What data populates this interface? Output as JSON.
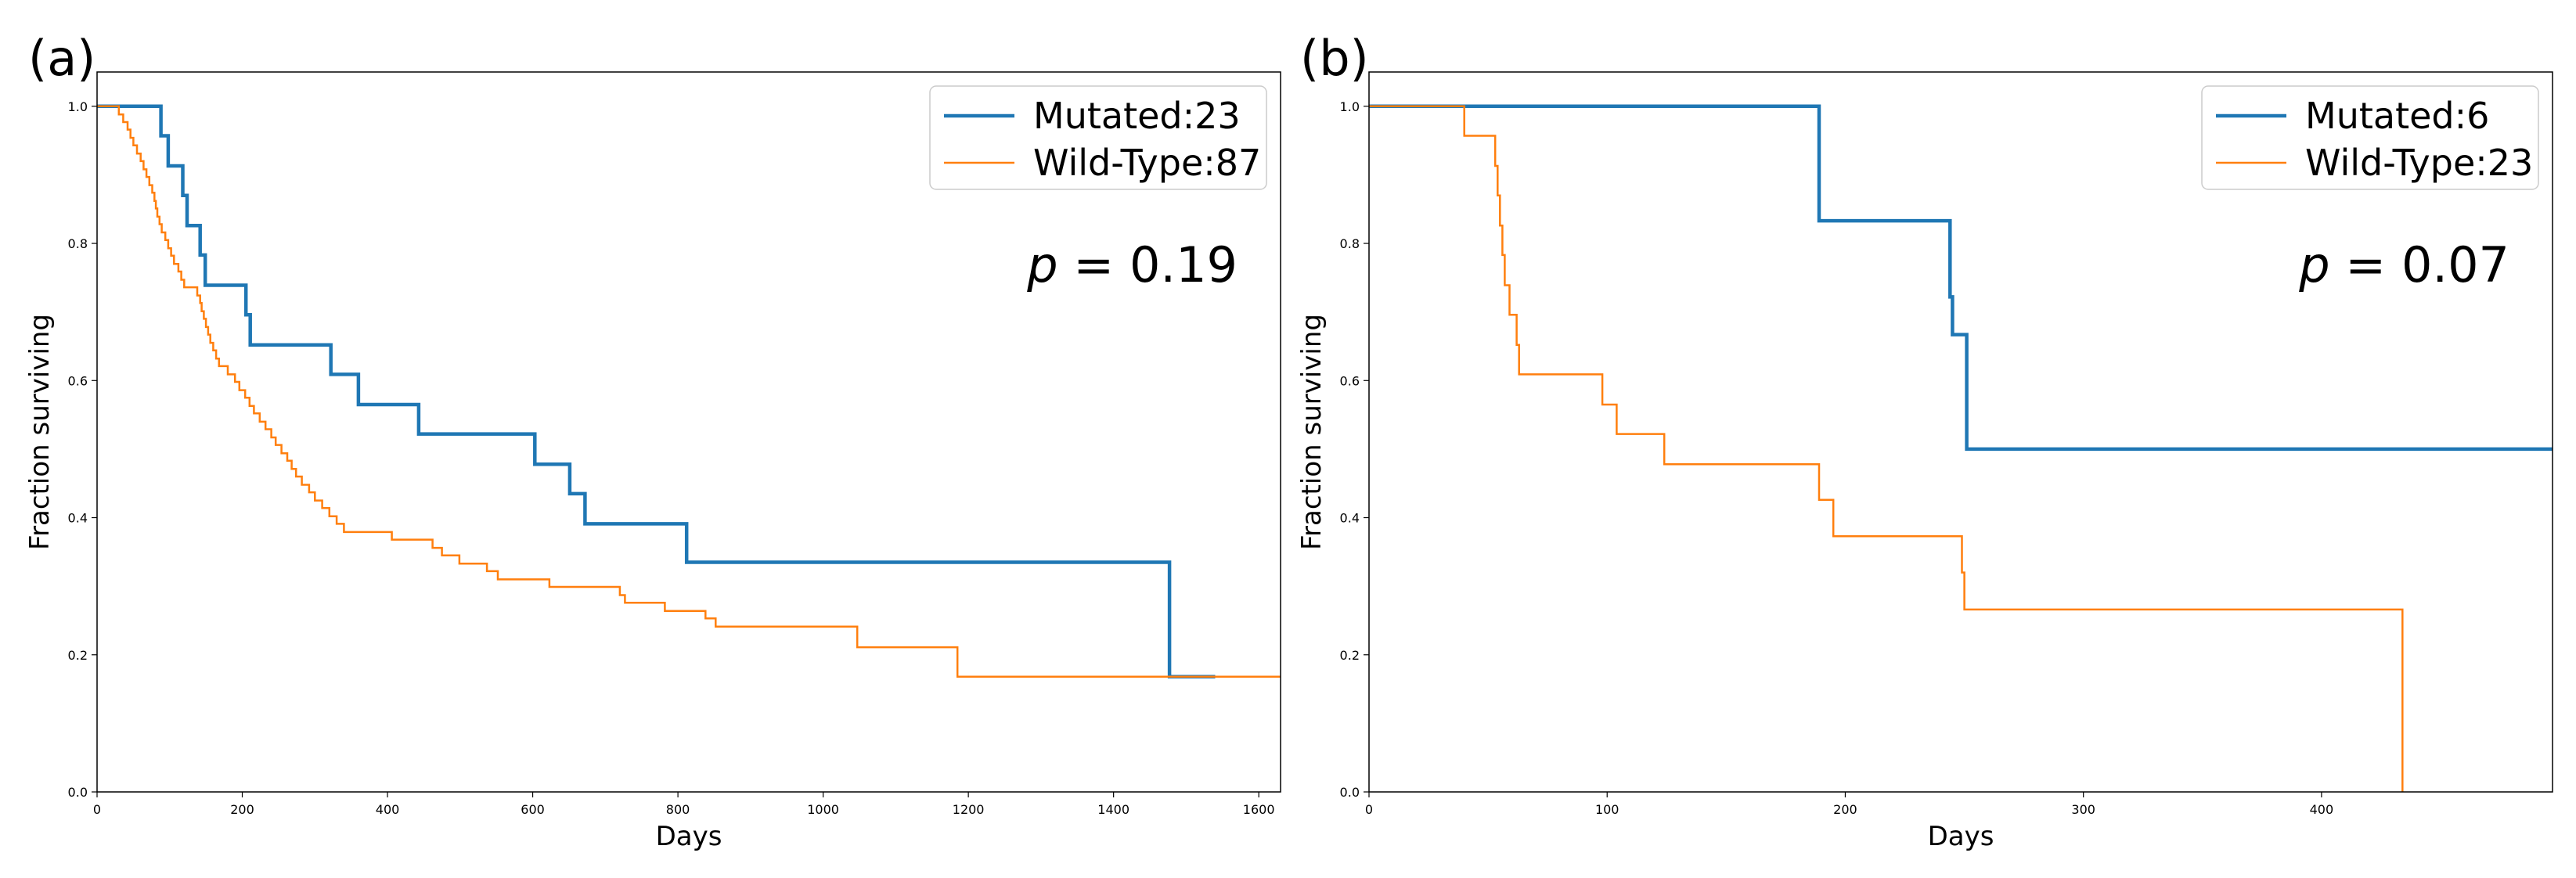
{
  "chart_data": [
    {
      "type": "line",
      "subtype": "kaplan-meier step",
      "panel_label": "(a)",
      "xlabel": "Days",
      "ylabel": "Fraction surviving",
      "xlim": [
        0,
        1630
      ],
      "ylim": [
        0,
        1.05
      ],
      "xticks": [
        0,
        200,
        400,
        600,
        800,
        1000,
        1200,
        1400,
        1600
      ],
      "yticks": [
        0.0,
        0.2,
        0.4,
        0.6,
        0.8,
        1.0
      ],
      "annotation": {
        "italic_symbol": "p",
        "text": " = 0.19"
      },
      "legend_position": "top-right",
      "series": [
        {
          "name": "Mutated:23",
          "color": "#1f77b4",
          "width": 4.5,
          "points": [
            [
              0,
              1.0
            ],
            [
              88,
              1.0
            ],
            [
              88,
              0.957
            ],
            [
              98,
              0.957
            ],
            [
              98,
              0.913
            ],
            [
              118,
              0.913
            ],
            [
              118,
              0.87
            ],
            [
              124,
              0.87
            ],
            [
              124,
              0.826
            ],
            [
              142,
              0.826
            ],
            [
              142,
              0.783
            ],
            [
              149,
              0.783
            ],
            [
              149,
              0.739
            ],
            [
              205,
              0.739
            ],
            [
              205,
              0.696
            ],
            [
              211,
              0.696
            ],
            [
              211,
              0.652
            ],
            [
              322,
              0.652
            ],
            [
              322,
              0.609
            ],
            [
              360,
              0.609
            ],
            [
              360,
              0.565
            ],
            [
              443,
              0.565
            ],
            [
              443,
              0.522
            ],
            [
              603,
              0.522
            ],
            [
              603,
              0.478
            ],
            [
              651,
              0.478
            ],
            [
              651,
              0.435
            ],
            [
              672,
              0.435
            ],
            [
              672,
              0.391
            ],
            [
              812,
              0.391
            ],
            [
              812,
              0.335
            ],
            [
              1477,
              0.335
            ],
            [
              1477,
              0.168
            ],
            [
              1540,
              0.168
            ]
          ]
        },
        {
          "name": "Wild-Type:87",
          "color": "#ff7f0e",
          "width": 2.5,
          "points": [
            [
              0,
              1.0
            ],
            [
              30,
              1.0
            ],
            [
              30,
              0.988
            ],
            [
              36,
              0.988
            ],
            [
              36,
              0.977
            ],
            [
              42,
              0.977
            ],
            [
              42,
              0.966
            ],
            [
              46,
              0.966
            ],
            [
              46,
              0.954
            ],
            [
              50,
              0.954
            ],
            [
              50,
              0.943
            ],
            [
              55,
              0.943
            ],
            [
              55,
              0.931
            ],
            [
              60,
              0.931
            ],
            [
              60,
              0.92
            ],
            [
              64,
              0.92
            ],
            [
              64,
              0.908
            ],
            [
              68,
              0.908
            ],
            [
              68,
              0.897
            ],
            [
              72,
              0.897
            ],
            [
              72,
              0.885
            ],
            [
              76,
              0.885
            ],
            [
              76,
              0.874
            ],
            [
              79,
              0.874
            ],
            [
              79,
              0.862
            ],
            [
              81,
              0.862
            ],
            [
              81,
              0.851
            ],
            [
              83,
              0.851
            ],
            [
              83,
              0.839
            ],
            [
              86,
              0.839
            ],
            [
              86,
              0.828
            ],
            [
              89,
              0.828
            ],
            [
              89,
              0.816
            ],
            [
              94,
              0.816
            ],
            [
              94,
              0.805
            ],
            [
              98,
              0.805
            ],
            [
              98,
              0.793
            ],
            [
              102,
              0.793
            ],
            [
              102,
              0.782
            ],
            [
              106,
              0.782
            ],
            [
              106,
              0.77
            ],
            [
              112,
              0.77
            ],
            [
              112,
              0.759
            ],
            [
              116,
              0.759
            ],
            [
              116,
              0.747
            ],
            [
              120,
              0.747
            ],
            [
              120,
              0.736
            ],
            [
              138,
              0.736
            ],
            [
              138,
              0.724
            ],
            [
              142,
              0.724
            ],
            [
              142,
              0.713
            ],
            [
              144,
              0.713
            ],
            [
              144,
              0.701
            ],
            [
              147,
              0.701
            ],
            [
              147,
              0.69
            ],
            [
              150,
              0.69
            ],
            [
              150,
              0.678
            ],
            [
              153,
              0.678
            ],
            [
              153,
              0.667
            ],
            [
              156,
              0.667
            ],
            [
              156,
              0.655
            ],
            [
              160,
              0.655
            ],
            [
              160,
              0.644
            ],
            [
              164,
              0.644
            ],
            [
              164,
              0.632
            ],
            [
              168,
              0.632
            ],
            [
              168,
              0.621
            ],
            [
              180,
              0.621
            ],
            [
              180,
              0.609
            ],
            [
              190,
              0.609
            ],
            [
              190,
              0.598
            ],
            [
              196,
              0.598
            ],
            [
              196,
              0.586
            ],
            [
              204,
              0.586
            ],
            [
              204,
              0.575
            ],
            [
              210,
              0.575
            ],
            [
              210,
              0.563
            ],
            [
              216,
              0.563
            ],
            [
              216,
              0.552
            ],
            [
              224,
              0.552
            ],
            [
              224,
              0.54
            ],
            [
              232,
              0.54
            ],
            [
              232,
              0.529
            ],
            [
              240,
              0.529
            ],
            [
              240,
              0.517
            ],
            [
              246,
              0.517
            ],
            [
              246,
              0.506
            ],
            [
              254,
              0.506
            ],
            [
              254,
              0.494
            ],
            [
              262,
              0.494
            ],
            [
              262,
              0.483
            ],
            [
              268,
              0.483
            ],
            [
              268,
              0.471
            ],
            [
              274,
              0.471
            ],
            [
              274,
              0.46
            ],
            [
              282,
              0.46
            ],
            [
              282,
              0.448
            ],
            [
              292,
              0.448
            ],
            [
              292,
              0.437
            ],
            [
              300,
              0.437
            ],
            [
              300,
              0.425
            ],
            [
              310,
              0.425
            ],
            [
              310,
              0.414
            ],
            [
              320,
              0.414
            ],
            [
              320,
              0.402
            ],
            [
              330,
              0.402
            ],
            [
              330,
              0.391
            ],
            [
              340,
              0.391
            ],
            [
              340,
              0.379
            ],
            [
              406,
              0.379
            ],
            [
              406,
              0.368
            ],
            [
              462,
              0.368
            ],
            [
              462,
              0.356
            ],
            [
              475,
              0.356
            ],
            [
              475,
              0.345
            ],
            [
              499,
              0.345
            ],
            [
              499,
              0.333
            ],
            [
              537,
              0.333
            ],
            [
              537,
              0.322
            ],
            [
              552,
              0.322
            ],
            [
              552,
              0.31
            ],
            [
              623,
              0.31
            ],
            [
              623,
              0.299
            ],
            [
              720,
              0.299
            ],
            [
              720,
              0.287
            ],
            [
              727,
              0.287
            ],
            [
              727,
              0.276
            ],
            [
              782,
              0.276
            ],
            [
              782,
              0.264
            ],
            [
              838,
              0.264
            ],
            [
              838,
              0.253
            ],
            [
              852,
              0.253
            ],
            [
              852,
              0.241
            ],
            [
              1047,
              0.241
            ],
            [
              1047,
              0.211
            ],
            [
              1185,
              0.211
            ],
            [
              1185,
              0.168
            ],
            [
              1630,
              0.168
            ]
          ]
        }
      ]
    },
    {
      "type": "line",
      "subtype": "kaplan-meier step",
      "panel_label": "(b)",
      "xlabel": "Days",
      "ylabel": "Fraction surviving",
      "xlim": [
        0,
        497
      ],
      "ylim": [
        0,
        1.05
      ],
      "xticks": [
        0,
        100,
        200,
        300,
        400
      ],
      "yticks": [
        0.0,
        0.2,
        0.4,
        0.6,
        0.8,
        1.0
      ],
      "annotation": {
        "italic_symbol": "p",
        "text": " = 0.07"
      },
      "legend_position": "top-right",
      "series": [
        {
          "name": "Mutated:6",
          "color": "#1f77b4",
          "width": 4.5,
          "points": [
            [
              0,
              1.0
            ],
            [
              189,
              1.0
            ],
            [
              189,
              0.833
            ],
            [
              244,
              0.833
            ],
            [
              244,
              0.722
            ],
            [
              245,
              0.722
            ],
            [
              245,
              0.667
            ],
            [
              251,
              0.667
            ],
            [
              251,
              0.5
            ],
            [
              497,
              0.5
            ]
          ]
        },
        {
          "name": "Wild-Type:23",
          "color": "#ff7f0e",
          "width": 2.5,
          "points": [
            [
              0,
              1.0
            ],
            [
              40,
              1.0
            ],
            [
              40,
              0.957
            ],
            [
              53,
              0.957
            ],
            [
              53,
              0.913
            ],
            [
              54,
              0.913
            ],
            [
              54,
              0.87
            ],
            [
              55,
              0.87
            ],
            [
              55,
              0.826
            ],
            [
              56,
              0.826
            ],
            [
              56,
              0.783
            ],
            [
              57,
              0.783
            ],
            [
              57,
              0.739
            ],
            [
              59,
              0.739
            ],
            [
              59,
              0.696
            ],
            [
              62,
              0.696
            ],
            [
              62,
              0.652
            ],
            [
              63,
              0.652
            ],
            [
              63,
              0.609
            ],
            [
              98,
              0.609
            ],
            [
              98,
              0.565
            ],
            [
              104,
              0.565
            ],
            [
              104,
              0.522
            ],
            [
              124,
              0.522
            ],
            [
              124,
              0.478
            ],
            [
              189,
              0.478
            ],
            [
              189,
              0.426
            ],
            [
              195,
              0.426
            ],
            [
              195,
              0.373
            ],
            [
              249,
              0.373
            ],
            [
              249,
              0.32
            ],
            [
              250,
              0.32
            ],
            [
              250,
              0.266
            ],
            [
              434,
              0.266
            ],
            [
              434,
              0.0
            ]
          ]
        }
      ]
    }
  ]
}
